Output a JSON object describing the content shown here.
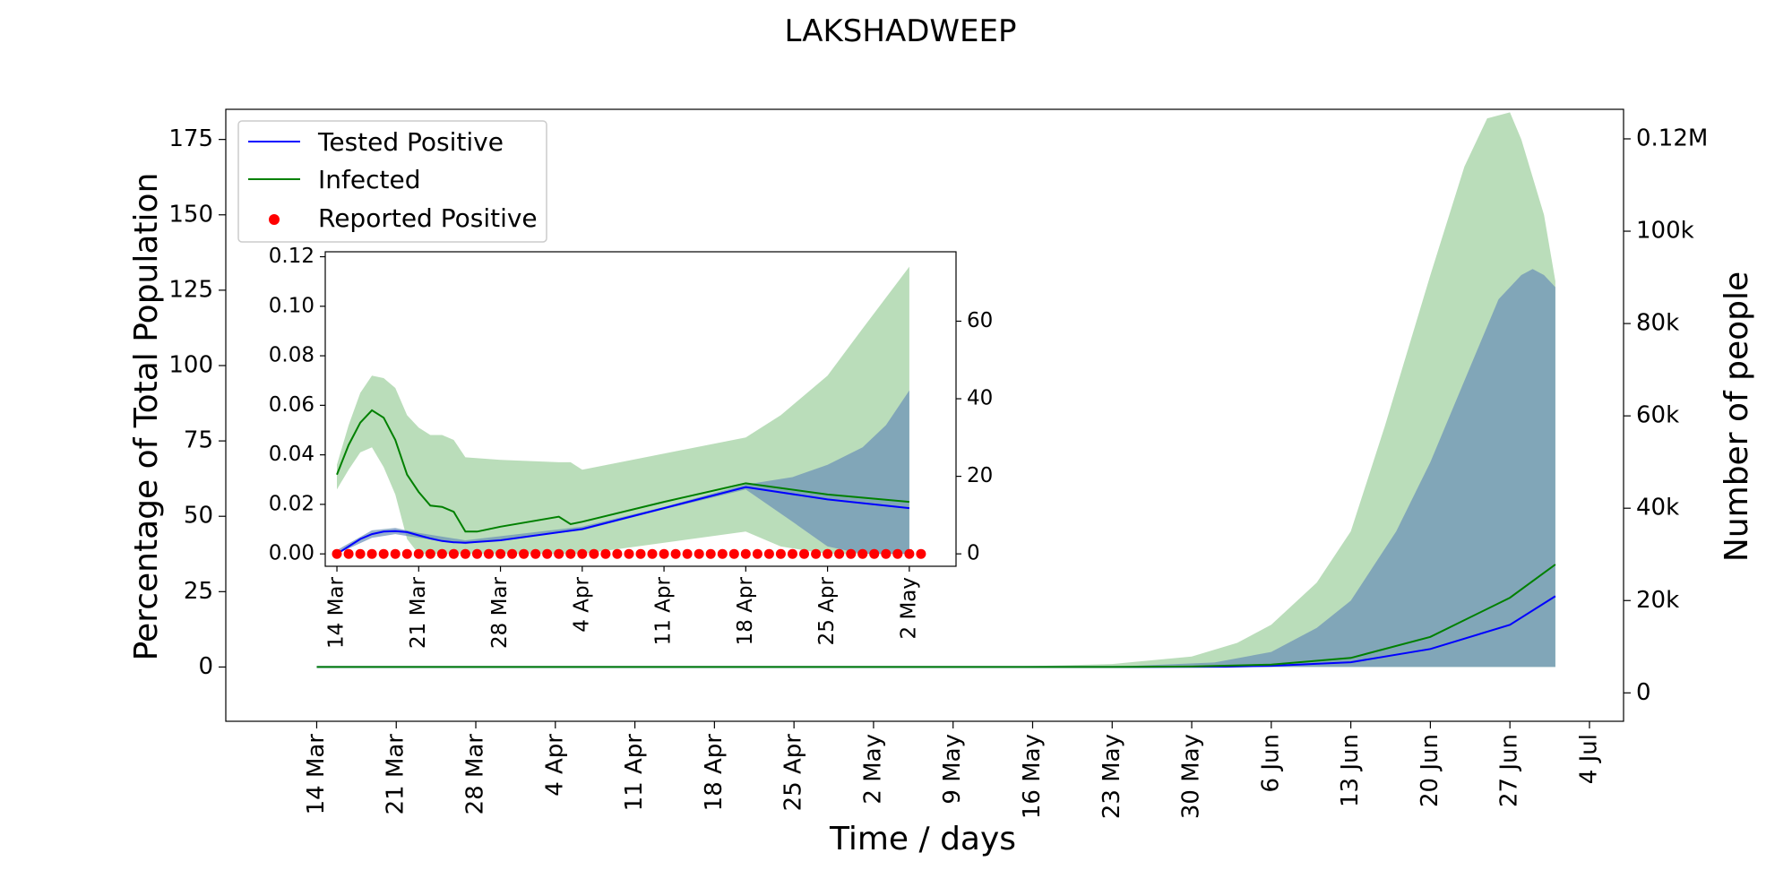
{
  "chart_data": [
    {
      "type": "line",
      "title": "LAKSHADWEEP",
      "xlabel": "Time / days",
      "ylabel": "Percentage of Total Population",
      "ylabel_right": "Number of people",
      "xlim": [
        "2020-03-06",
        "2020-07-07"
      ],
      "ylim": [
        -18,
        185
      ],
      "ylim_right": [
        -6150,
        126400
      ],
      "x_ticks": [
        "14 Mar",
        "21 Mar",
        "28 Mar",
        "4 Apr",
        "11 Apr",
        "18 Apr",
        "25 Apr",
        "2 May",
        "9 May",
        "16 May",
        "23 May",
        "30 May",
        "6 Jun",
        "13 Jun",
        "20 Jun",
        "27 Jun",
        "4 Jul"
      ],
      "x_tick_dates": [
        "2020-03-14",
        "2020-03-21",
        "2020-03-28",
        "2020-04-04",
        "2020-04-11",
        "2020-04-18",
        "2020-04-25",
        "2020-05-02",
        "2020-05-09",
        "2020-05-16",
        "2020-05-23",
        "2020-05-30",
        "2020-06-06",
        "2020-06-13",
        "2020-06-20",
        "2020-06-27",
        "2020-07-04"
      ],
      "y_ticks": [
        "0",
        "25",
        "50",
        "75",
        "100",
        "125",
        "150",
        "175"
      ],
      "y_tick_values": [
        0,
        25,
        50,
        75,
        100,
        125,
        150,
        175
      ],
      "y_ticks_right": [
        "0",
        "20k",
        "40k",
        "60k",
        "80k",
        "100k",
        "0.12M"
      ],
      "y_tick_values_right": [
        0,
        20000,
        40000,
        60000,
        80000,
        100000,
        120000
      ],
      "legend": "top-left",
      "grid": false,
      "series": [
        {
          "name": "Tested Positive",
          "color": "#0000ff",
          "x": [
            "2020-03-14",
            "2020-05-02",
            "2020-05-23",
            "2020-06-02",
            "2020-06-06",
            "2020-06-13",
            "2020-06-20",
            "2020-06-27",
            "2020-07-01"
          ],
          "y": [
            0,
            0,
            0,
            0.1,
            0.4,
            1.6,
            6,
            14,
            23.5
          ]
        },
        {
          "name": "Infected",
          "color": "#008000",
          "x": [
            "2020-03-14",
            "2020-05-02",
            "2020-05-23",
            "2020-05-30",
            "2020-06-06",
            "2020-06-13",
            "2020-06-20",
            "2020-06-27",
            "2020-07-01"
          ],
          "y": [
            0,
            0,
            0,
            0.15,
            0.8,
            3,
            10,
            23,
            34
          ]
        },
        {
          "name": "Reported Positive",
          "color": "#ff0000",
          "x": [],
          "y": []
        }
      ],
      "bands": [
        {
          "color": "#9ccf9c",
          "x": [
            "2020-03-14",
            "2020-05-02",
            "2020-05-16",
            "2020-05-23",
            "2020-05-30",
            "2020-06-03",
            "2020-06-06",
            "2020-06-10",
            "2020-06-13",
            "2020-06-16",
            "2020-06-20",
            "2020-06-23",
            "2020-06-25",
            "2020-06-27",
            "2020-06-28",
            "2020-06-30",
            "2020-07-01"
          ],
          "lower": [
            0,
            0,
            0,
            0,
            0,
            0,
            0,
            0,
            0,
            0,
            0,
            0,
            0,
            0,
            0,
            0,
            0
          ],
          "upper": [
            0.05,
            0.05,
            0.3,
            1,
            3.5,
            8,
            14,
            28,
            45,
            80,
            130,
            166,
            182,
            184,
            175,
            150,
            128
          ]
        },
        {
          "color": "#6a8fb8",
          "x": [
            "2020-03-14",
            "2020-05-02",
            "2020-05-23",
            "2020-06-01",
            "2020-06-06",
            "2020-06-10",
            "2020-06-13",
            "2020-06-17",
            "2020-06-20",
            "2020-06-24",
            "2020-06-26",
            "2020-06-28",
            "2020-06-29",
            "2020-06-30",
            "2020-07-01"
          ],
          "lower": [
            0,
            0,
            0,
            0,
            0,
            0,
            0,
            0,
            0,
            0,
            0,
            0,
            0,
            0,
            0
          ],
          "upper": [
            0,
            0,
            0.1,
            1.5,
            5,
            13,
            22,
            45,
            68,
            104,
            122,
            130,
            132,
            130,
            126
          ]
        }
      ]
    },
    {
      "type": "line",
      "title": "",
      "xlabel": "",
      "ylabel": "",
      "xlim": [
        "2020-03-13",
        "2020-05-06"
      ],
      "ylim": [
        -0.005,
        0.122
      ],
      "ylim_right": [
        -3.2,
        77.9
      ],
      "x_ticks": [
        "14 Mar",
        "21 Mar",
        "28 Mar",
        "4 Apr",
        "11 Apr",
        "18 Apr",
        "25 Apr",
        "2 May"
      ],
      "x_tick_dates": [
        "2020-03-14",
        "2020-03-21",
        "2020-03-28",
        "2020-04-04",
        "2020-04-11",
        "2020-04-18",
        "2020-04-25",
        "2020-05-02"
      ],
      "y_ticks": [
        "0.00",
        "0.02",
        "0.04",
        "0.06",
        "0.08",
        "0.10",
        "0.12"
      ],
      "y_tick_values": [
        0,
        0.02,
        0.04,
        0.06,
        0.08,
        0.1,
        0.12
      ],
      "y_ticks_right": [
        "0",
        "20",
        "40",
        "60"
      ],
      "y_tick_values_right": [
        0,
        20,
        40,
        60
      ],
      "grid": false,
      "series": [
        {
          "name": "Tested Positive",
          "color": "#0000ff",
          "x": [
            "2020-03-14",
            "2020-03-15",
            "2020-03-16",
            "2020-03-17",
            "2020-03-18",
            "2020-03-19",
            "2020-03-20",
            "2020-03-21",
            "2020-03-22",
            "2020-03-23",
            "2020-03-24",
            "2020-03-25",
            "2020-03-28",
            "2020-04-04",
            "2020-04-11",
            "2020-04-18",
            "2020-04-25",
            "2020-05-02"
          ],
          "y": [
            0,
            0.003,
            0.006,
            0.008,
            0.009,
            0.0092,
            0.0088,
            0.0075,
            0.0062,
            0.0052,
            0.0047,
            0.0045,
            0.0055,
            0.01,
            0.0185,
            0.027,
            0.022,
            0.0185
          ]
        },
        {
          "name": "Infected",
          "color": "#008000",
          "x": [
            "2020-03-14",
            "2020-03-15",
            "2020-03-16",
            "2020-03-17",
            "2020-03-18",
            "2020-03-19",
            "2020-03-20",
            "2020-03-21",
            "2020-03-22",
            "2020-03-23",
            "2020-03-24",
            "2020-03-25",
            "2020-03-26",
            "2020-03-28",
            "2020-04-02",
            "2020-04-03",
            "2020-04-04",
            "2020-04-11",
            "2020-04-18",
            "2020-04-25",
            "2020-05-02"
          ],
          "y": [
            0.032,
            0.044,
            0.053,
            0.058,
            0.055,
            0.046,
            0.032,
            0.025,
            0.0195,
            0.019,
            0.017,
            0.009,
            0.009,
            0.011,
            0.015,
            0.012,
            0.013,
            0.021,
            0.0285,
            0.024,
            0.021
          ]
        },
        {
          "name": "Reported Positive",
          "color": "#ff0000",
          "x": [
            "2020-03-14",
            "2020-03-15",
            "2020-03-16",
            "2020-03-17",
            "2020-03-18",
            "2020-03-19",
            "2020-03-20",
            "2020-03-21",
            "2020-03-22",
            "2020-03-23",
            "2020-03-24",
            "2020-03-25",
            "2020-03-26",
            "2020-03-27",
            "2020-03-28",
            "2020-03-29",
            "2020-03-30",
            "2020-03-31",
            "2020-04-01",
            "2020-04-02",
            "2020-04-03",
            "2020-04-04",
            "2020-04-05",
            "2020-04-06",
            "2020-04-07",
            "2020-04-08",
            "2020-04-09",
            "2020-04-10",
            "2020-04-11",
            "2020-04-12",
            "2020-04-13",
            "2020-04-14",
            "2020-04-15",
            "2020-04-16",
            "2020-04-17",
            "2020-04-18",
            "2020-04-19",
            "2020-04-20",
            "2020-04-21",
            "2020-04-22",
            "2020-04-23",
            "2020-04-24",
            "2020-04-25",
            "2020-04-26",
            "2020-04-27",
            "2020-04-28",
            "2020-04-29",
            "2020-04-30",
            "2020-05-01",
            "2020-05-02",
            "2020-05-03"
          ],
          "y": [
            0,
            0,
            0,
            0,
            0,
            0,
            0,
            0,
            0,
            0,
            0,
            0,
            0,
            0,
            0,
            0,
            0,
            0,
            0,
            0,
            0,
            0,
            0,
            0,
            0,
            0,
            0,
            0,
            0,
            0,
            0,
            0,
            0,
            0,
            0,
            0,
            0,
            0,
            0,
            0,
            0,
            0,
            0,
            0,
            0,
            0,
            0,
            0,
            0,
            0,
            0
          ]
        }
      ],
      "bands": [
        {
          "color": "#9ccf9c",
          "x": [
            "2020-03-14",
            "2020-03-15",
            "2020-03-16",
            "2020-03-17",
            "2020-03-18",
            "2020-03-19",
            "2020-03-20",
            "2020-03-21",
            "2020-03-22",
            "2020-03-23",
            "2020-03-24",
            "2020-03-25",
            "2020-03-28",
            "2020-04-02",
            "2020-04-03",
            "2020-04-04",
            "2020-04-18",
            "2020-04-21",
            "2020-04-25",
            "2020-04-28",
            "2020-05-02"
          ],
          "lower": [
            0.026,
            0.034,
            0.041,
            0.043,
            0.035,
            0.024,
            0.006,
            0,
            0,
            0,
            0,
            0,
            0,
            0,
            0,
            0,
            0.009,
            0.003,
            0,
            0,
            0
          ],
          "upper": [
            0.036,
            0.052,
            0.065,
            0.072,
            0.071,
            0.067,
            0.056,
            0.051,
            0.048,
            0.048,
            0.046,
            0.039,
            0.038,
            0.037,
            0.037,
            0.034,
            0.047,
            0.056,
            0.072,
            0.091,
            0.116
          ]
        },
        {
          "color": "#6a8fb8",
          "x": [
            "2020-03-14",
            "2020-03-17",
            "2020-03-19",
            "2020-03-21",
            "2020-03-25",
            "2020-04-04",
            "2020-04-11",
            "2020-04-18",
            "2020-04-22",
            "2020-04-25",
            "2020-04-28",
            "2020-04-30",
            "2020-05-02"
          ],
          "lower": [
            0,
            0.0065,
            0.008,
            0.0065,
            0.004,
            0.0095,
            0.018,
            0.026,
            0.013,
            0.003,
            0,
            0,
            0
          ],
          "upper": [
            0.0015,
            0.0095,
            0.0105,
            0.0085,
            0.0055,
            0.011,
            0.019,
            0.028,
            0.031,
            0.036,
            0.043,
            0.052,
            0.066
          ]
        }
      ]
    }
  ]
}
